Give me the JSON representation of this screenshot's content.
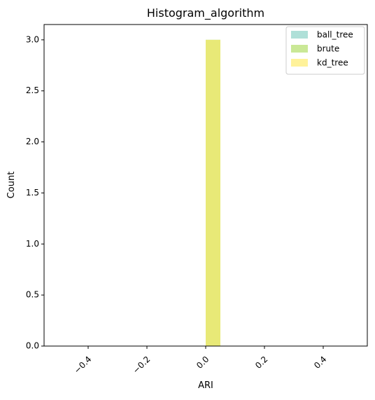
{
  "chart_data": {
    "type": "histogram",
    "title": "Histogram_algorithm",
    "xlabel": "ARI",
    "ylabel": "Count",
    "xlim": [
      -0.55,
      0.55
    ],
    "ylim": [
      0,
      3.15
    ],
    "xticks": [
      -0.4,
      -0.2,
      0.0,
      0.2,
      0.4
    ],
    "xtick_labels": [
      "−0.4",
      "−0.2",
      "0.0",
      "0.2",
      "0.4"
    ],
    "yticks": [
      0.0,
      0.5,
      1.0,
      1.5,
      2.0,
      2.5,
      3.0
    ],
    "ytick_labels": [
      "0.0",
      "0.5",
      "1.0",
      "1.5",
      "2.0",
      "2.5",
      "3.0"
    ],
    "legend_position": "top-right",
    "grid": false,
    "series": [
      {
        "name": "ball_tree",
        "color": "#8dd3c7",
        "opacity": 0.7,
        "bins": [
          {
            "x0": 0.0,
            "x1": 0.05,
            "count": 3
          }
        ]
      },
      {
        "name": "brute",
        "color": "#b3de69",
        "opacity": 0.7,
        "bins": [
          {
            "x0": 0.0,
            "x1": 0.05,
            "count": 3
          }
        ]
      },
      {
        "name": "kd_tree",
        "color": "#ffed6f",
        "opacity": 0.7,
        "bins": [
          {
            "x0": 0.0,
            "x1": 0.05,
            "count": 3
          }
        ]
      }
    ]
  }
}
